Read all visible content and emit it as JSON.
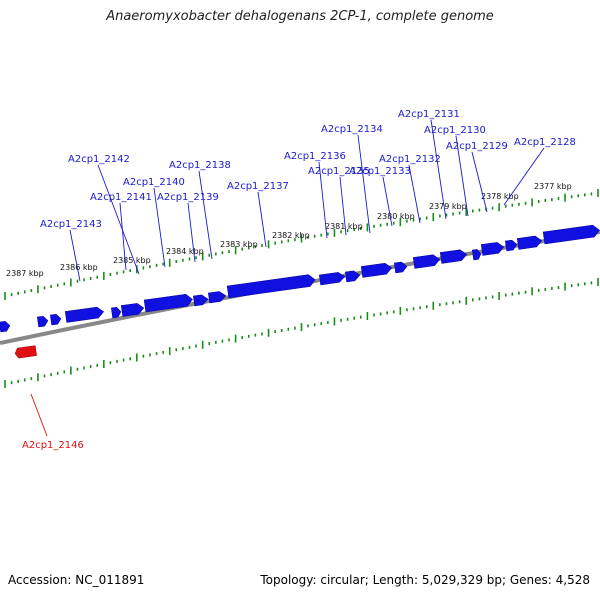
{
  "title": "Anaeromyxobacter dehalogenans 2CP-1, complete genome",
  "accession": "Accession: NC_011891",
  "stats": "Topology: circular; Length: 5,029,329 bp; Genes: 4,528",
  "colors": {
    "forward": "#1010e0",
    "reverse": "#e01010",
    "backbone": "#808080",
    "ticks": "#1a8c1a",
    "label_forward": "#1a1acc"
  },
  "kbp_labels": [
    "2377 kbp",
    "2378 kbp",
    "2379 kbp",
    "2380 kbp",
    "2381 kbp",
    "2382 kbp",
    "2383 kbp",
    "2384 kbp",
    "2385 kbp",
    "2386 kbp",
    "2387 kbp"
  ],
  "genes_forward": [
    "A2cp1_2128",
    "A2cp1_2129",
    "A2cp1_2130",
    "A2cp1_2131",
    "A2cp1_2132",
    "A2cp1_2133",
    "A2cp1_2134",
    "A2cp1_2135",
    "A2cp1_2136",
    "A2cp1_2137",
    "A2cp1_2138",
    "A2cp1_2139",
    "A2cp1_2140",
    "A2cp1_2141",
    "A2cp1_2142",
    "A2cp1_2143"
  ],
  "genes_reverse": [
    "A2cp1_2146"
  ]
}
